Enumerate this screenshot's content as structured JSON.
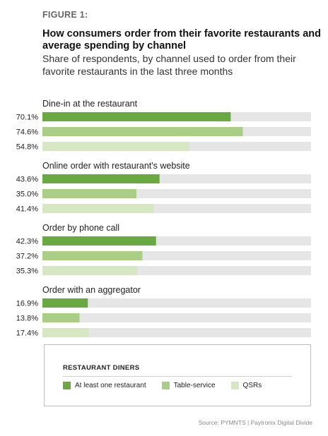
{
  "figure_label": "FIGURE 1:",
  "title": "How consumers order from their favorite restaurants and average spending by channel",
  "subtitle": "Share of respondents, by channel used to order from their favorite restaurants in the last three months",
  "legend_title": "RESTAURANT DINERS",
  "source": "Source: PYMNTS | Paytronix   Digital Divide",
  "colors": {
    "at_least_one": "#6aa842",
    "table_service": "#a9cf86",
    "qsrs": "#d6e8c3",
    "track": "#e6e6e6"
  },
  "chart_data": {
    "type": "bar",
    "orientation": "horizontal",
    "xlim": [
      0,
      100
    ],
    "series": [
      {
        "name": "At least one restaurant",
        "color": "#6aa842"
      },
      {
        "name": "Table-service",
        "color": "#a9cf86"
      },
      {
        "name": "QSRs",
        "color": "#d6e8c3"
      }
    ],
    "groups": [
      {
        "label": "Dine-in at the restaurant",
        "values": [
          70.1,
          74.6,
          54.8
        ],
        "labels": [
          "70.1%",
          "74.6%",
          "54.8%"
        ]
      },
      {
        "label": "Online order with restaurant's website",
        "values": [
          43.6,
          35.0,
          41.4
        ],
        "labels": [
          "43.6%",
          "35.0%",
          "41.4%"
        ]
      },
      {
        "label": "Order by phone call",
        "values": [
          42.3,
          37.2,
          35.3
        ],
        "labels": [
          "42.3%",
          "37.2%",
          "35.3%"
        ]
      },
      {
        "label": "Order with an aggregator",
        "values": [
          16.9,
          13.8,
          17.4
        ],
        "labels": [
          "16.9%",
          "13.8%",
          "17.4%"
        ]
      }
    ]
  }
}
